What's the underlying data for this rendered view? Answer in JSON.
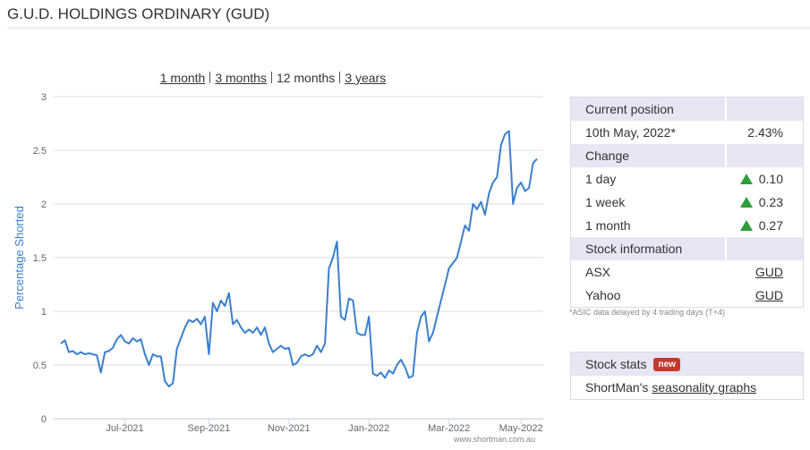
{
  "header": {
    "title": "G.U.D. HOLDINGS ORDINARY (GUD)"
  },
  "periods": {
    "items": [
      "1 month",
      "3 months",
      "12 months",
      "3 years"
    ],
    "active": 2
  },
  "position": {
    "sections": [
      {
        "heading": "Current position",
        "rows": [
          {
            "label": "10th May, 2022*",
            "value": "2.43%"
          }
        ]
      },
      {
        "heading": "Change",
        "rows": [
          {
            "label": "1 day",
            "value": "0.10",
            "direction": "up"
          },
          {
            "label": "1 week",
            "value": "0.23",
            "direction": "up"
          },
          {
            "label": "1 month",
            "value": "0.27",
            "direction": "up"
          }
        ]
      },
      {
        "heading": "Stock information",
        "rows": [
          {
            "label": "ASX",
            "link": "GUD"
          },
          {
            "label": "Yahoo",
            "link": "GUD"
          }
        ]
      }
    ],
    "note": "*ASIC data delayed by 4 trading days (T+4)"
  },
  "stats": {
    "heading": "Stock stats",
    "badge": "new",
    "text": "ShortMan's",
    "link": "seasonality graphs"
  },
  "chart_data": {
    "type": "line",
    "ylabel": "Percentage Shorted",
    "watermark": "www.shortman.com.au",
    "color": "#3a7fd0",
    "grid": true,
    "ylim": [
      0,
      3
    ],
    "yticks": [
      0,
      0.5,
      1,
      1.5,
      2,
      2.5,
      3
    ],
    "categories": [
      null,
      null,
      null,
      null,
      null,
      null,
      null,
      null,
      null,
      null,
      null,
      null,
      null,
      null,
      null,
      null,
      "Jul-2021",
      null,
      null,
      null,
      null,
      null,
      null,
      null,
      null,
      null,
      null,
      null,
      null,
      null,
      null,
      null,
      null,
      null,
      null,
      null,
      null,
      "Sep-2021",
      null,
      null,
      null,
      null,
      null,
      null,
      null,
      null,
      null,
      null,
      null,
      null,
      null,
      null,
      null,
      null,
      null,
      null,
      null,
      "Nov-2021",
      null,
      null,
      null,
      null,
      null,
      null,
      null,
      null,
      null,
      null,
      null,
      null,
      null,
      null,
      null,
      null,
      null,
      null,
      null,
      "Jan-2022",
      null,
      null,
      null,
      null,
      null,
      null,
      null,
      null,
      null,
      null,
      null,
      null,
      null,
      null,
      null,
      null,
      null,
      null,
      null,
      "Mar-2022",
      null,
      null,
      null,
      null,
      null,
      null,
      null,
      null,
      null,
      null,
      null,
      null,
      null,
      null,
      null,
      null,
      null,
      "May-2022",
      null,
      null,
      null,
      null
    ],
    "values": [
      0.7,
      0.73,
      0.62,
      0.63,
      0.6,
      0.62,
      0.6,
      0.61,
      0.6,
      0.59,
      0.43,
      0.62,
      0.63,
      0.66,
      0.74,
      0.78,
      0.72,
      0.7,
      0.75,
      0.72,
      0.74,
      0.6,
      0.5,
      0.6,
      0.58,
      0.58,
      0.35,
      0.3,
      0.33,
      0.65,
      0.75,
      0.85,
      0.92,
      0.9,
      0.93,
      0.88,
      0.95,
      0.6,
      1.08,
      1.0,
      1.1,
      1.05,
      1.17,
      0.88,
      0.92,
      0.85,
      0.8,
      0.83,
      0.8,
      0.85,
      0.78,
      0.85,
      0.7,
      0.62,
      0.65,
      0.68,
      0.65,
      0.66,
      0.5,
      0.52,
      0.58,
      0.6,
      0.58,
      0.6,
      0.68,
      0.62,
      0.7,
      1.4,
      1.5,
      1.65,
      0.95,
      0.92,
      1.12,
      1.1,
      0.8,
      0.78,
      0.78,
      0.95,
      0.42,
      0.4,
      0.43,
      0.38,
      0.45,
      0.42,
      0.5,
      0.55,
      0.48,
      0.38,
      0.4,
      0.8,
      0.95,
      1.0,
      0.72,
      0.8,
      0.95,
      1.1,
      1.25,
      1.4,
      1.45,
      1.5,
      1.65,
      1.8,
      1.75,
      2.0,
      1.95,
      2.02,
      1.9,
      2.1,
      2.2,
      2.25,
      2.55,
      2.65,
      2.68,
      2.0,
      2.15,
      2.2,
      2.12,
      2.15,
      2.38,
      2.42
    ]
  }
}
